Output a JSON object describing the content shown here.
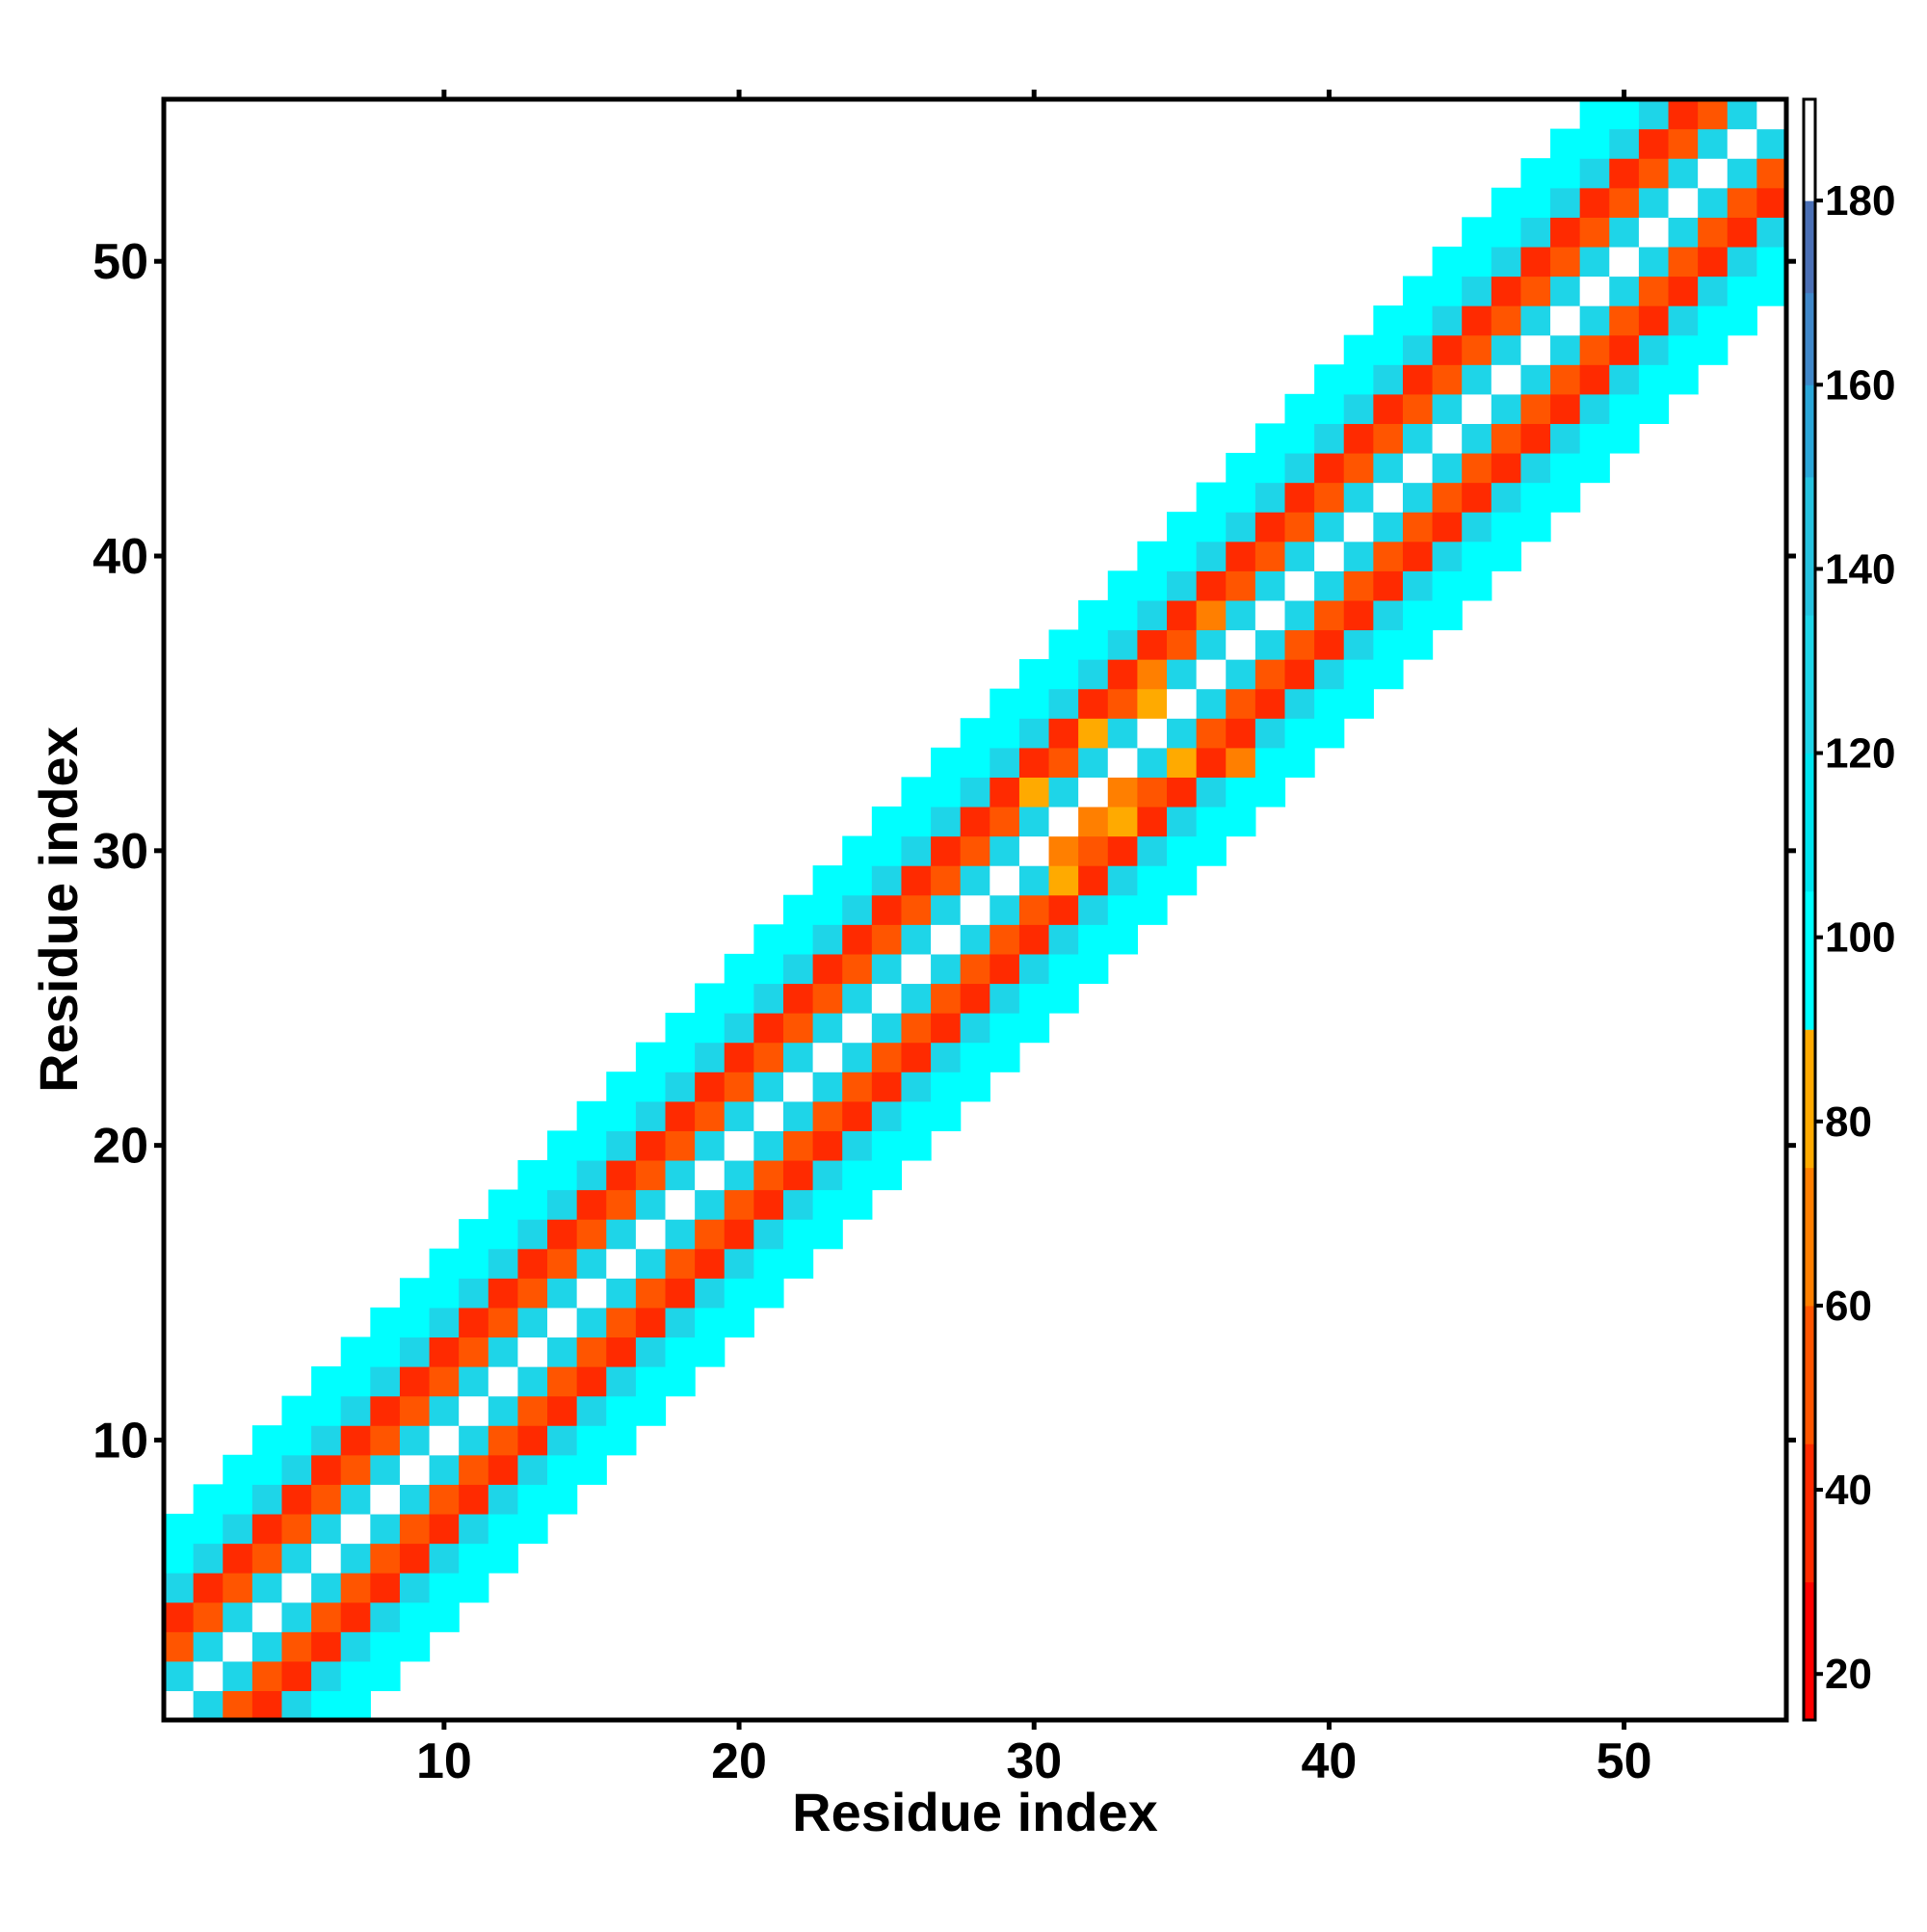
{
  "chart_data": {
    "type": "heatmap",
    "title": "",
    "xlabel": "Residue index",
    "ylabel": "Residue index",
    "xlim": [
      0.5,
      55.5
    ],
    "ylim": [
      0.5,
      55.5
    ],
    "n_residues": 55,
    "x_ticks": [
      10,
      20,
      30,
      40,
      50
    ],
    "y_ticks": [
      10,
      20,
      30,
      40,
      50
    ],
    "x_tick_labels": [
      "10",
      "20",
      "30",
      "40",
      "50"
    ],
    "y_tick_labels": [
      "10",
      "20",
      "30",
      "40",
      "50"
    ],
    "diagonal_value": 190,
    "mask_beyond_offset": 6,
    "colorbar": {
      "range": [
        15,
        191
      ],
      "ticks": [
        20,
        40,
        60,
        80,
        100,
        120,
        140,
        160,
        180
      ],
      "tick_labels": [
        "20",
        "40",
        "60",
        "80",
        "100",
        "120",
        "140",
        "160",
        "180"
      ],
      "bins": [
        {
          "from": 15,
          "to": 30,
          "color": "#ff0000"
        },
        {
          "from": 30,
          "to": 45,
          "color": "#ff2a00"
        },
        {
          "from": 45,
          "to": 60,
          "color": "#ff5500"
        },
        {
          "from": 60,
          "to": 75,
          "color": "#ff7f00"
        },
        {
          "from": 75,
          "to": 90,
          "color": "#ffaa00"
        },
        {
          "from": 90,
          "to": 105,
          "color": "#00ffff"
        },
        {
          "from": 105,
          "to": 120,
          "color": "#00e5f0"
        },
        {
          "from": 120,
          "to": 135,
          "color": "#1ed5e8"
        },
        {
          "from": 135,
          "to": 150,
          "color": "#25c2df"
        },
        {
          "from": 150,
          "to": 160,
          "color": "#2aa6d8"
        },
        {
          "from": 160,
          "to": 170,
          "color": "#3f87c9"
        },
        {
          "from": 170,
          "to": 180,
          "color": "#4a6fb5"
        },
        {
          "from": 180,
          "to": 191,
          "color": "#ffffff"
        }
      ]
    },
    "offset_values": {
      "0": 190,
      "1": 130,
      "2": 55,
      "3": 40,
      "4": 130,
      "5": 100,
      "6": 100
    },
    "overrides": [
      {
        "i": 31,
        "j": 29,
        "v": 80
      },
      {
        "i": 30,
        "j": 32,
        "v": 80
      },
      {
        "i": 33,
        "j": 31,
        "v": 80
      },
      {
        "i": 32,
        "j": 34,
        "v": 80
      },
      {
        "i": 34,
        "j": 35,
        "v": 80
      },
      {
        "i": 35,
        "j": 33,
        "v": 80
      },
      {
        "i": 32,
        "j": 31,
        "v": 65
      },
      {
        "i": 31,
        "j": 30,
        "v": 65
      },
      {
        "i": 33,
        "j": 32,
        "v": 65
      },
      {
        "i": 29,
        "j": 28,
        "v": 120
      },
      {
        "i": 28,
        "j": 32,
        "v": 120
      },
      {
        "i": 37,
        "j": 33,
        "v": 60
      },
      {
        "i": 36,
        "j": 38,
        "v": 60
      },
      {
        "i": 34,
        "j": 36,
        "v": 60
      }
    ]
  }
}
